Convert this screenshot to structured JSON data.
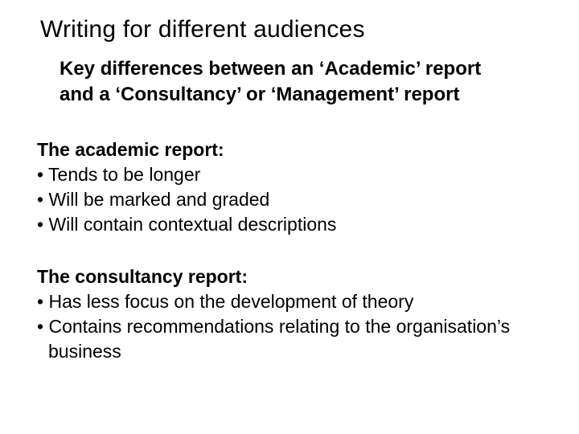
{
  "title": "Writing for different audiences",
  "subtitle_line1": "Key differences between an ‘Academic’ report",
  "subtitle_line2": "and a ‘Consultancy’ or ‘Management’ report",
  "section_a": {
    "heading": "The academic report:",
    "bullets": [
      "Tends to be longer",
      "Will be marked and graded",
      "Will contain contextual descriptions"
    ]
  },
  "section_b": {
    "heading": "The consultancy report:",
    "bullets": [
      "Has less focus on the development of theory",
      "Contains recommendations relating to the organisation’s"
    ],
    "wrap": "business"
  },
  "colors": {
    "background": "#ffffff",
    "text": "#000000"
  },
  "typography": {
    "title_fontsize": 30,
    "subtitle_fontsize": 24,
    "body_fontsize": 23,
    "font_family": "Arial"
  }
}
